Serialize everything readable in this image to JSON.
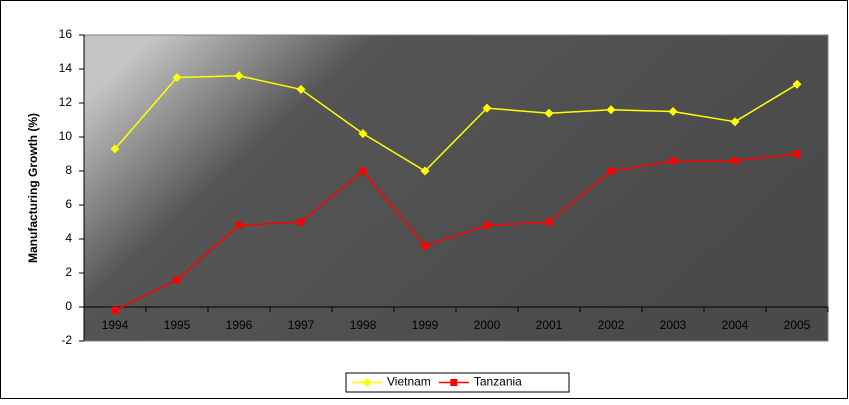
{
  "chart_data": {
    "type": "line",
    "y_label": "Manufacturing Growth (%)",
    "categories": [
      "1994",
      "1995",
      "1996",
      "1997",
      "1998",
      "1999",
      "2000",
      "2001",
      "2002",
      "2003",
      "2004",
      "2005"
    ],
    "series": [
      {
        "name": "Vietnam",
        "color": "#ffff00",
        "marker": "diamond",
        "values": [
          9.3,
          13.5,
          13.6,
          12.8,
          10.2,
          8.0,
          11.7,
          11.4,
          11.6,
          11.5,
          10.9,
          13.1
        ]
      },
      {
        "name": "Tanzania",
        "color": "#ff0000",
        "marker": "square",
        "values": [
          -0.2,
          1.6,
          4.8,
          5.0,
          8.0,
          3.6,
          4.8,
          5.0,
          8.0,
          8.6,
          8.6,
          9.0
        ]
      }
    ],
    "ylim": [
      -2,
      16
    ],
    "yticks": [
      -2,
      0,
      2,
      4,
      6,
      8,
      10,
      12,
      14,
      16
    ],
    "legend": "bottom"
  }
}
